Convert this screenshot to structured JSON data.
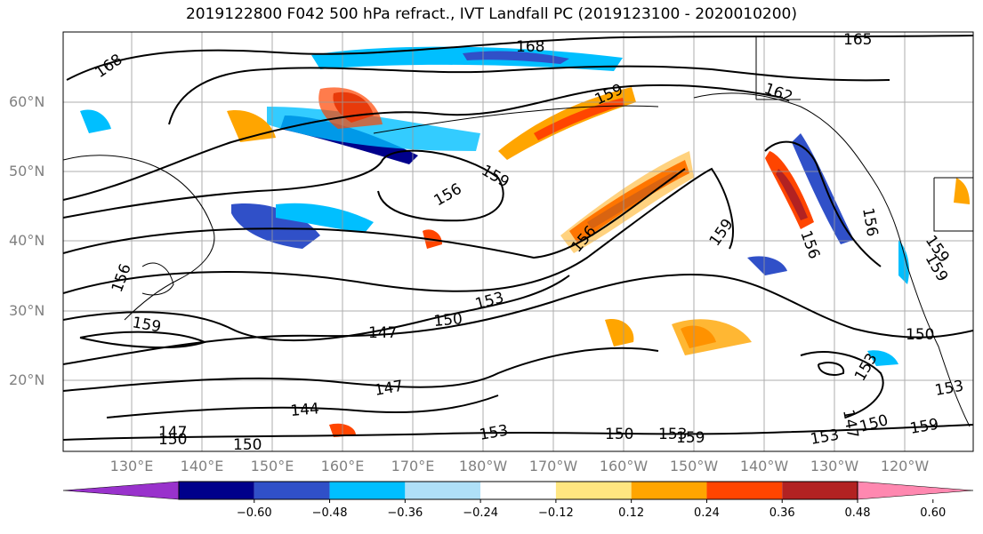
{
  "title": "2019122800 F042 500 hPa refract., IVT Landfall PC (2019123100 - 2020010200)",
  "map": {
    "lat_labels": [
      "60°N",
      "50°N",
      "40°N",
      "30°N",
      "20°N"
    ],
    "lon_labels": [
      "130°E",
      "140°E",
      "150°E",
      "160°E",
      "170°E",
      "180°W",
      "170°W",
      "160°W",
      "150°W",
      "140°W",
      "130°W",
      "120°W"
    ],
    "contour_labels": [
      "168",
      "168",
      "165",
      "162",
      "159",
      "159",
      "156",
      "156",
      "156",
      "159",
      "159",
      "156",
      "159",
      "156",
      "159",
      "150",
      "153",
      "147",
      "147",
      "144",
      "147",
      "150",
      "150",
      "153",
      "153",
      "150",
      "153",
      "159",
      "153",
      "147",
      "153",
      "150",
      "159",
      "150"
    ],
    "grid": true,
    "colors": {
      "contour": "#000000",
      "grid": "#999999",
      "label": "#808080"
    }
  },
  "colorbar": {
    "tick_labels": [
      "−0.60",
      "−0.48",
      "−0.36",
      "−0.24",
      "−0.12",
      "0.12",
      "0.24",
      "0.36",
      "0.48",
      "0.60"
    ],
    "bins": [
      {
        "color": "#9932cc"
      },
      {
        "color": "#00008b"
      },
      {
        "color": "#3050c8"
      },
      {
        "color": "#00bfff"
      },
      {
        "color": "#afe0f8"
      },
      {
        "color": "#ffffff"
      },
      {
        "color": "#ffe680"
      },
      {
        "color": "#ffa500"
      },
      {
        "color": "#ff4500"
      },
      {
        "color": "#b22222"
      },
      {
        "color": "#ff88b0"
      }
    ]
  }
}
